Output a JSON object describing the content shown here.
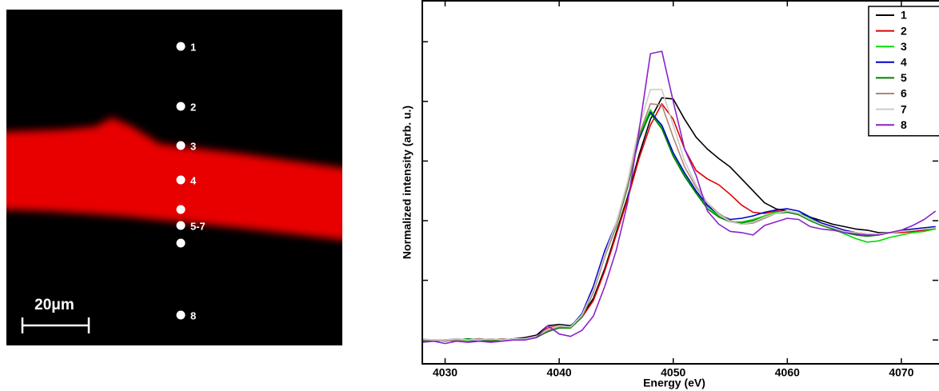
{
  "image": {
    "labels": [
      "1",
      "2",
      "3",
      "4",
      "5-7",
      "8"
    ],
    "scale_bar": "20μm"
  },
  "chart_data": {
    "type": "line",
    "xlabel": "Energy (eV)",
    "ylabel": "Normalized intensity (arb. u.)",
    "x": [
      4028,
      4029,
      4030,
      4031,
      4032,
      4033,
      4034,
      4035,
      4036,
      4037,
      4038,
      4039,
      4040,
      4041,
      4042,
      4043,
      4044,
      4045,
      4046,
      4047,
      4048,
      4049,
      4050,
      4051,
      4052,
      4053,
      4054,
      4055,
      4056,
      4057,
      4058,
      4059,
      4060,
      4061,
      4062,
      4063,
      4064,
      4065,
      4066,
      4067,
      4068,
      4069,
      4070,
      4071,
      4072,
      4073
    ],
    "xlim": [
      4028,
      4073.3
    ],
    "xticks": [
      4030,
      4040,
      4050,
      4060,
      4070
    ],
    "ylim": [
      -0.2,
      2.85
    ],
    "yticks": [
      0,
      0.5,
      1,
      1.5,
      2,
      2.5
    ],
    "legend": "upper right",
    "series": [
      {
        "name": "1",
        "color": "#000000",
        "values": [
          -0.01,
          0,
          0,
          -0.01,
          0,
          0.01,
          0,
          0,
          0.01,
          0.02,
          0.04,
          0.12,
          0.13,
          0.12,
          0.2,
          0.35,
          0.6,
          0.9,
          1.2,
          1.55,
          1.85,
          2.03,
          2.02,
          1.85,
          1.7,
          1.6,
          1.52,
          1.45,
          1.35,
          1.25,
          1.15,
          1.1,
          1.08,
          1.06,
          1.03,
          1.0,
          0.97,
          0.95,
          0.93,
          0.92,
          0.9,
          0.9,
          0.91,
          0.92,
          0.93,
          0.94
        ]
      },
      {
        "name": "2",
        "color": "#e00000",
        "values": [
          0,
          -0.01,
          0,
          0,
          -0.01,
          0,
          0.01,
          0,
          0,
          0.01,
          0.03,
          0.1,
          0.12,
          0.11,
          0.19,
          0.33,
          0.58,
          0.88,
          1.18,
          1.52,
          1.8,
          1.98,
          1.85,
          1.6,
          1.42,
          1.35,
          1.3,
          1.22,
          1.13,
          1.07,
          1.06,
          1.08,
          1.08,
          1.05,
          1.01,
          0.98,
          0.95,
          0.92,
          0.9,
          0.89,
          0.88,
          0.9,
          0.9,
          0.91,
          0.92,
          0.93
        ]
      },
      {
        "name": "3",
        "color": "#00dd00",
        "values": [
          -0.01,
          0,
          -0.01,
          0,
          -0.01,
          0,
          0,
          0.01,
          0,
          0.01,
          0.03,
          0.08,
          0.12,
          0.11,
          0.2,
          0.42,
          0.72,
          0.97,
          1.32,
          1.72,
          1.93,
          1.78,
          1.55,
          1.38,
          1.24,
          1.12,
          1.04,
          0.99,
          0.99,
          1.01,
          1.04,
          1.07,
          1.08,
          1.06,
          1.02,
          0.97,
          0.93,
          0.89,
          0.85,
          0.82,
          0.83,
          0.86,
          0.88,
          0.9,
          0.91,
          0.93
        ]
      },
      {
        "name": "4",
        "color": "#0000cc",
        "values": [
          0,
          -0.01,
          0,
          0.01,
          0,
          -0.01,
          0,
          0,
          0.01,
          0.01,
          0.03,
          0.07,
          0.11,
          0.11,
          0.22,
          0.45,
          0.75,
          0.98,
          1.3,
          1.68,
          1.91,
          1.8,
          1.57,
          1.4,
          1.25,
          1.13,
          1.05,
          1.01,
          1.02,
          1.04,
          1.07,
          1.09,
          1.1,
          1.08,
          1.03,
          0.98,
          0.95,
          0.92,
          0.9,
          0.88,
          0.89,
          0.9,
          0.92,
          0.93,
          0.94,
          0.95
        ]
      },
      {
        "name": "5",
        "color": "#008000",
        "values": [
          -0.01,
          -0.01,
          0,
          0,
          0.01,
          0,
          -0.01,
          0,
          0,
          0.01,
          0.02,
          0.07,
          0.1,
          0.1,
          0.19,
          0.4,
          0.7,
          0.95,
          1.28,
          1.7,
          1.9,
          1.77,
          1.54,
          1.37,
          1.23,
          1.1,
          1.03,
          0.99,
          0.98,
          1.0,
          1.03,
          1.06,
          1.07,
          1.05,
          1.0,
          0.96,
          0.93,
          0.9,
          0.88,
          0.87,
          0.88,
          0.9,
          0.91,
          0.92,
          0.93,
          0.94
        ]
      },
      {
        "name": "6",
        "color": "#b08878",
        "values": [
          0,
          0,
          -0.01,
          0,
          0,
          0.01,
          0,
          0.01,
          0,
          0.01,
          0.03,
          0.08,
          0.11,
          0.11,
          0.2,
          0.4,
          0.7,
          0.96,
          1.3,
          1.72,
          1.98,
          1.97,
          1.7,
          1.45,
          1.28,
          1.15,
          1.06,
          1.0,
          0.97,
          0.98,
          1.02,
          1.06,
          1.08,
          1.06,
          1.01,
          0.97,
          0.94,
          0.91,
          0.89,
          0.88,
          0.89,
          0.9,
          0.91,
          0.92,
          0.93,
          0.94
        ]
      },
      {
        "name": "7",
        "color": "#cccccc",
        "values": [
          0.01,
          0,
          0,
          0.01,
          0,
          0,
          0.01,
          0,
          0.01,
          0.01,
          0.03,
          0.09,
          0.12,
          0.11,
          0.21,
          0.42,
          0.72,
          0.98,
          1.33,
          1.78,
          2.1,
          2.1,
          1.8,
          1.5,
          1.3,
          1.15,
          1.05,
          0.99,
          0.97,
          0.99,
          1.03,
          1.06,
          1.08,
          1.06,
          1.01,
          0.97,
          0.94,
          0.91,
          0.9,
          0.89,
          0.89,
          0.9,
          0.91,
          0.92,
          0.93,
          0.94
        ]
      },
      {
        "name": "8",
        "color": "#8a22cc",
        "values": [
          -0.02,
          -0.01,
          -0.03,
          -0.01,
          -0.02,
          -0.01,
          -0.02,
          -0.01,
          0,
          0,
          0.02,
          0.12,
          0.05,
          0.03,
          0.08,
          0.2,
          0.45,
          0.75,
          1.15,
          1.75,
          2.4,
          2.42,
          2.0,
          1.6,
          1.38,
          1.08,
          0.97,
          0.91,
          0.9,
          0.88,
          0.96,
          0.99,
          1.02,
          1.01,
          0.95,
          0.93,
          0.92,
          0.9,
          0.89,
          0.88,
          0.88,
          0.9,
          0.92,
          0.96,
          1.01,
          1.08
        ]
      }
    ]
  }
}
